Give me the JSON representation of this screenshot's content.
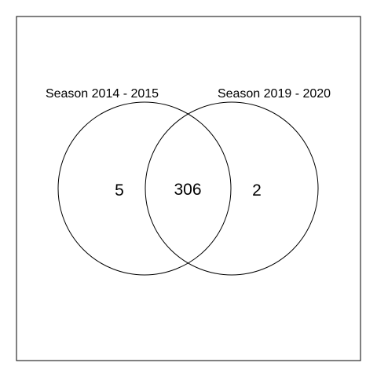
{
  "venn": {
    "sets": [
      {
        "name": "Season 2014 - 2015",
        "only_count": "5"
      },
      {
        "name": "Season 2019 - 2020",
        "only_count": "2"
      }
    ],
    "intersection_count": "306"
  },
  "colors": {
    "background": "#ffffff",
    "stroke": "#000000"
  }
}
